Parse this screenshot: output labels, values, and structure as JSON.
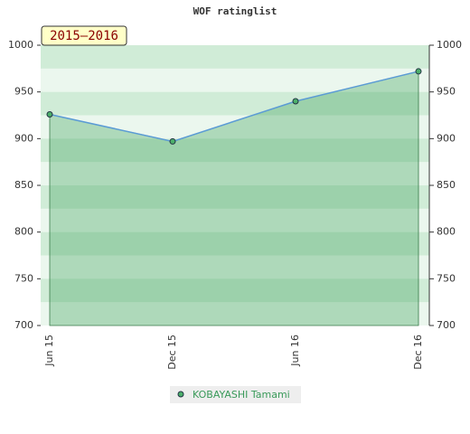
{
  "chart_data": {
    "type": "line",
    "title": "WOF ratinglist",
    "annotation": "2015–2016",
    "categories": [
      "Jun 15",
      "Dec 15",
      "Jun 16",
      "Dec 16"
    ],
    "series": [
      {
        "name": "KOBAYASHI Tamami",
        "color": "#5b9bd5",
        "marker_color": "#4caf6a",
        "values": [
          926,
          897,
          940,
          972
        ]
      }
    ],
    "ylim": [
      700,
      1000
    ],
    "yticks": [
      700,
      750,
      800,
      850,
      900,
      950,
      1000
    ],
    "y2lim": [
      700,
      1000
    ],
    "y2ticks": [
      700,
      750,
      800,
      850,
      900,
      950,
      1000
    ],
    "area_fill": true
  }
}
